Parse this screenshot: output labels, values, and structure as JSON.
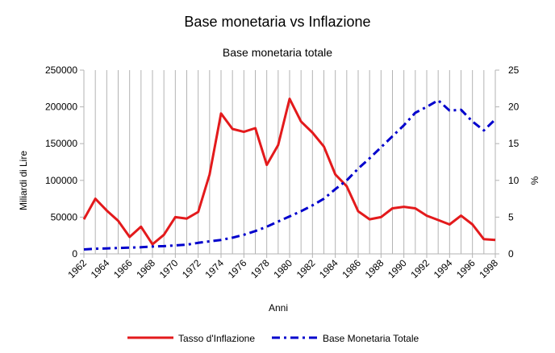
{
  "chart_data": {
    "type": "line",
    "title": "Base monetaria vs Inflazione",
    "subtitle": "Base monetaria totale",
    "xlabel": "Anni",
    "ylabel_left": "Miliardi di Lire",
    "ylabel_right": "%",
    "x": [
      1962,
      1963,
      1964,
      1965,
      1966,
      1967,
      1968,
      1969,
      1970,
      1971,
      1972,
      1973,
      1974,
      1975,
      1976,
      1977,
      1978,
      1979,
      1980,
      1981,
      1982,
      1983,
      1984,
      1985,
      1986,
      1987,
      1988,
      1989,
      1990,
      1991,
      1992,
      1993,
      1994,
      1995,
      1996,
      1997,
      1998
    ],
    "x_tick_labels": [
      "1962",
      "1964",
      "1966",
      "1968",
      "1970",
      "1972",
      "1974",
      "1976",
      "1978",
      "1980",
      "1982",
      "1984",
      "1986",
      "1988",
      "1990",
      "1992",
      "1994",
      "1996",
      "1998"
    ],
    "ylim_left": [
      0,
      250000
    ],
    "ylim_right": [
      0,
      25
    ],
    "yticks_left": [
      "0",
      "50000",
      "100000",
      "150000",
      "200000",
      "250000"
    ],
    "yticks_right": [
      "0",
      "5",
      "10",
      "15",
      "20",
      "25"
    ],
    "grid": "vertical",
    "legend_position": "bottom",
    "series": [
      {
        "name": "Tasso d'Inflazione",
        "axis": "right",
        "color": "#e31a1c",
        "style": "solid",
        "values": [
          4.7,
          7.5,
          5.9,
          4.5,
          2.3,
          3.7,
          1.3,
          2.6,
          5.0,
          4.8,
          5.7,
          10.8,
          19.1,
          17.0,
          16.6,
          17.1,
          12.1,
          14.8,
          21.1,
          18.0,
          16.5,
          14.6,
          10.8,
          9.2,
          5.8,
          4.7,
          5.0,
          6.2,
          6.4,
          6.2,
          5.2,
          4.6,
          4.0,
          5.2,
          4.0,
          2.0,
          1.9
        ]
      },
      {
        "name": "Base Monetaria Totale",
        "axis": "left",
        "color": "#0000cc",
        "style": "dash-dot",
        "values": [
          6000,
          7000,
          7500,
          8000,
          8500,
          9000,
          10000,
          10500,
          11500,
          12500,
          15000,
          17000,
          19000,
          22000,
          26000,
          31000,
          37000,
          44000,
          51000,
          58000,
          66000,
          75000,
          88000,
          100000,
          116000,
          130000,
          145000,
          160000,
          175000,
          192000,
          200000,
          209000,
          195000,
          196000,
          180000,
          168000,
          183000
        ]
      }
    ],
    "legend": [
      "Tasso d'Inflazione",
      "Base Monetaria Totale"
    ]
  }
}
